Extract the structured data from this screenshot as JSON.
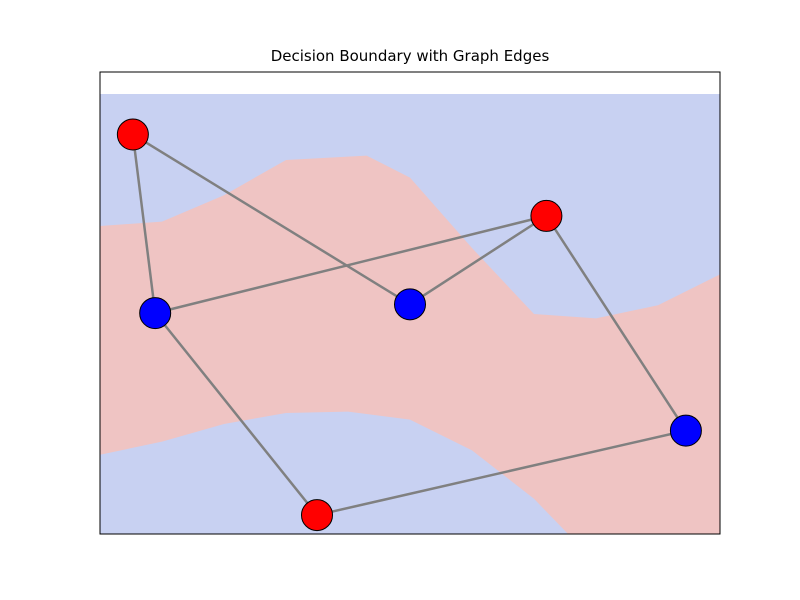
{
  "chart_data": {
    "type": "scatter",
    "title": "Decision Boundary with Graph Edges",
    "xlabel": "",
    "ylabel": "",
    "xlim": [
      0,
      10
    ],
    "ylim": [
      0,
      10
    ],
    "axes_visible": false,
    "grid": false,
    "colors": {
      "class_red": "#ff0000",
      "class_blue": "#0000ff",
      "region_red": "#efc4c3",
      "region_blue": "#c8d1f2",
      "edge": "#808080",
      "node_outline": "#000000"
    },
    "nodes": [
      {
        "id": 0,
        "x": 0.53,
        "y": 9.08,
        "class": "red"
      },
      {
        "id": 1,
        "x": 0.89,
        "y": 5.02,
        "class": "blue"
      },
      {
        "id": 2,
        "x": 5.0,
        "y": 5.22,
        "class": "blue"
      },
      {
        "id": 3,
        "x": 7.2,
        "y": 7.23,
        "class": "red"
      },
      {
        "id": 4,
        "x": 9.45,
        "y": 2.35,
        "class": "blue"
      },
      {
        "id": 5,
        "x": 3.5,
        "y": 0.43,
        "class": "red"
      }
    ],
    "edges": [
      [
        0,
        1
      ],
      [
        0,
        2
      ],
      [
        1,
        3
      ],
      [
        1,
        5
      ],
      [
        2,
        3
      ],
      [
        3,
        4
      ],
      [
        5,
        4
      ]
    ],
    "decision_boundary": {
      "upper": [
        [
          0,
          7.0
        ],
        [
          1,
          7.1
        ],
        [
          2,
          7.7
        ],
        [
          3,
          8.5
        ],
        [
          4.3,
          8.6
        ],
        [
          5,
          8.1
        ],
        [
          6,
          6.5
        ],
        [
          7,
          5.0
        ],
        [
          8,
          4.9
        ],
        [
          9,
          5.2
        ],
        [
          10,
          5.9
        ]
      ],
      "lower": [
        [
          0,
          1.8
        ],
        [
          1,
          2.1
        ],
        [
          2,
          2.5
        ],
        [
          3,
          2.75
        ],
        [
          4,
          2.78
        ],
        [
          5,
          2.6
        ],
        [
          6,
          1.9
        ],
        [
          7,
          0.8
        ],
        [
          7.55,
          0
        ],
        [
          10,
          0
        ]
      ],
      "note_regions": "red between upper and lower, blue elsewhere"
    }
  }
}
